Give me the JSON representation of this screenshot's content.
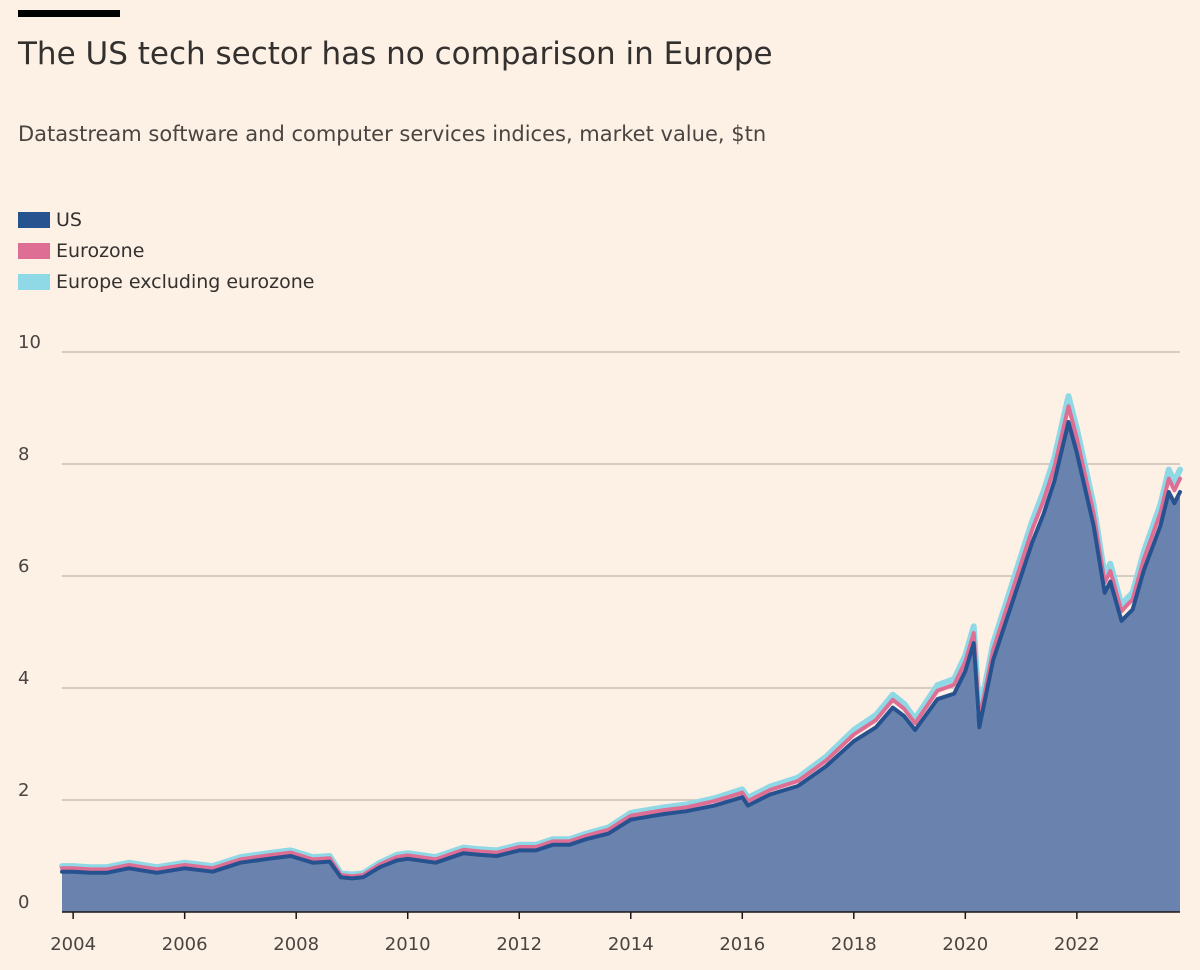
{
  "title": "The US tech sector has no comparison in Europe",
  "subtitle": "Datastream software and computer services indices, market value, $tn",
  "colors": {
    "us": "#275290",
    "us_fill": "#6a83ae",
    "eurozone": "#de6e94",
    "europe_ex": "#8fd8e5",
    "grid": "#c9c0b6",
    "background": "#fdf1e6"
  },
  "chart_data": {
    "type": "area",
    "stacked": true,
    "title": "The US tech sector has no comparison in Europe",
    "subtitle": "Datastream software and computer services indices, market value, $tn",
    "xlabel": "",
    "ylabel": "",
    "xlim": [
      2003.8,
      2023.85
    ],
    "ylim": [
      0,
      10
    ],
    "x_ticks": [
      "2004",
      "2006",
      "2008",
      "2010",
      "2012",
      "2014",
      "2016",
      "2018",
      "2020",
      "2022"
    ],
    "y_ticks": [
      "0",
      "2",
      "4",
      "6",
      "8",
      "10"
    ],
    "grid": true,
    "legend_position": "top-left",
    "x": [
      2003.8,
      2004.0,
      2004.3,
      2004.6,
      2005.0,
      2005.5,
      2006.0,
      2006.5,
      2007.0,
      2007.5,
      2007.9,
      2008.3,
      2008.6,
      2008.8,
      2009.0,
      2009.2,
      2009.5,
      2009.8,
      2010.0,
      2010.5,
      2011.0,
      2011.3,
      2011.6,
      2012.0,
      2012.3,
      2012.6,
      2012.9,
      2013.2,
      2013.6,
      2014.0,
      2014.3,
      2014.6,
      2015.0,
      2015.5,
      2016.0,
      2016.1,
      2016.5,
      2017.0,
      2017.5,
      2018.0,
      2018.4,
      2018.7,
      2018.9,
      2019.1,
      2019.5,
      2019.8,
      2020.0,
      2020.15,
      2020.25,
      2020.5,
      2020.8,
      2021.0,
      2021.2,
      2021.4,
      2021.6,
      2021.85,
      2022.0,
      2022.3,
      2022.5,
      2022.6,
      2022.8,
      2022.9,
      2023.0,
      2023.2,
      2023.5,
      2023.65,
      2023.75,
      2023.85
    ],
    "series": [
      {
        "name": "US",
        "values": [
          0.72,
          0.72,
          0.7,
          0.7,
          0.78,
          0.7,
          0.78,
          0.72,
          0.88,
          0.95,
          1.0,
          0.88,
          0.9,
          0.62,
          0.6,
          0.62,
          0.8,
          0.92,
          0.95,
          0.88,
          1.05,
          1.02,
          1.0,
          1.1,
          1.1,
          1.2,
          1.2,
          1.3,
          1.4,
          1.65,
          1.7,
          1.75,
          1.8,
          1.9,
          2.05,
          1.9,
          2.1,
          2.25,
          2.6,
          3.05,
          3.3,
          3.65,
          3.5,
          3.25,
          3.8,
          3.9,
          4.3,
          4.8,
          3.3,
          4.5,
          5.4,
          6.0,
          6.6,
          7.1,
          7.7,
          8.75,
          8.2,
          6.9,
          5.7,
          5.9,
          5.2,
          5.3,
          5.4,
          6.1,
          6.9,
          7.5,
          7.3,
          7.5
        ]
      },
      {
        "name": "Eurozone",
        "values": [
          0.06,
          0.06,
          0.06,
          0.06,
          0.06,
          0.06,
          0.06,
          0.06,
          0.06,
          0.06,
          0.06,
          0.06,
          0.06,
          0.04,
          0.04,
          0.04,
          0.05,
          0.06,
          0.06,
          0.06,
          0.06,
          0.06,
          0.06,
          0.06,
          0.06,
          0.06,
          0.06,
          0.06,
          0.07,
          0.07,
          0.07,
          0.07,
          0.07,
          0.08,
          0.08,
          0.08,
          0.08,
          0.09,
          0.1,
          0.12,
          0.13,
          0.14,
          0.13,
          0.12,
          0.15,
          0.16,
          0.17,
          0.18,
          0.14,
          0.18,
          0.2,
          0.22,
          0.23,
          0.24,
          0.25,
          0.28,
          0.26,
          0.22,
          0.18,
          0.19,
          0.17,
          0.18,
          0.18,
          0.2,
          0.23,
          0.24,
          0.23,
          0.24
        ]
      },
      {
        "name": "Europe excluding eurozone",
        "values": [
          0.04,
          0.04,
          0.04,
          0.04,
          0.04,
          0.04,
          0.04,
          0.04,
          0.04,
          0.04,
          0.04,
          0.04,
          0.04,
          0.03,
          0.03,
          0.03,
          0.03,
          0.04,
          0.04,
          0.04,
          0.04,
          0.04,
          0.04,
          0.04,
          0.04,
          0.04,
          0.04,
          0.04,
          0.04,
          0.05,
          0.05,
          0.05,
          0.05,
          0.05,
          0.06,
          0.06,
          0.06,
          0.06,
          0.07,
          0.08,
          0.09,
          0.09,
          0.09,
          0.08,
          0.1,
          0.1,
          0.11,
          0.12,
          0.09,
          0.12,
          0.13,
          0.14,
          0.15,
          0.16,
          0.17,
          0.18,
          0.17,
          0.15,
          0.12,
          0.13,
          0.11,
          0.12,
          0.12,
          0.13,
          0.15,
          0.16,
          0.15,
          0.16
        ]
      }
    ]
  }
}
